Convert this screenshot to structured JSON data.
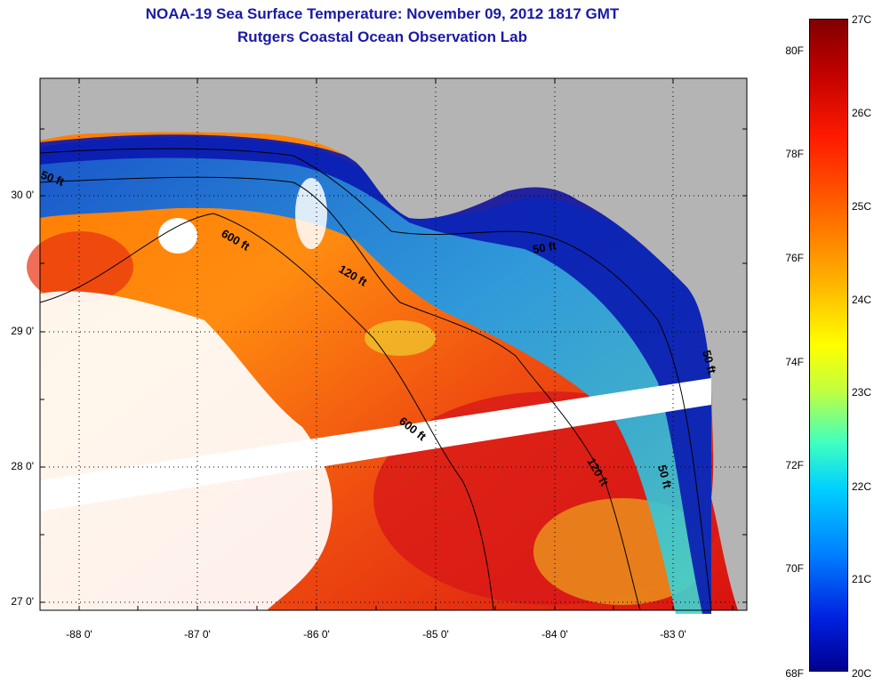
{
  "header": {
    "title": "NOAA-19 Sea Surface Temperature:  November 09, 2012 1817 GMT",
    "subtitle": "Rutgers Coastal Ocean Observation Lab"
  },
  "map": {
    "lat_labels": [
      "30 0'",
      "29 0'",
      "28 0'",
      "27 0'"
    ],
    "lon_labels": [
      "-88 0'",
      "-87 0'",
      "-86 0'",
      "-85 0'",
      "-84 0'",
      "-83 0'"
    ],
    "contour_labels": [
      "50 ft",
      "600 ft",
      "120 ft",
      "50 ft",
      "600 ft",
      "120 ft",
      "50 ft",
      "50 ft"
    ],
    "colors": {
      "land": "#b4b4b4",
      "cloud": "#ffffff",
      "cold": "#00008f",
      "warm": "#c00000"
    }
  },
  "colorbar": {
    "fahrenheit": [
      "80F",
      "78F",
      "76F",
      "74F",
      "72F",
      "70F",
      "68F"
    ],
    "celsius": [
      "27C",
      "26C",
      "25C",
      "24C",
      "23C",
      "22C",
      "21C",
      "20C"
    ]
  }
}
